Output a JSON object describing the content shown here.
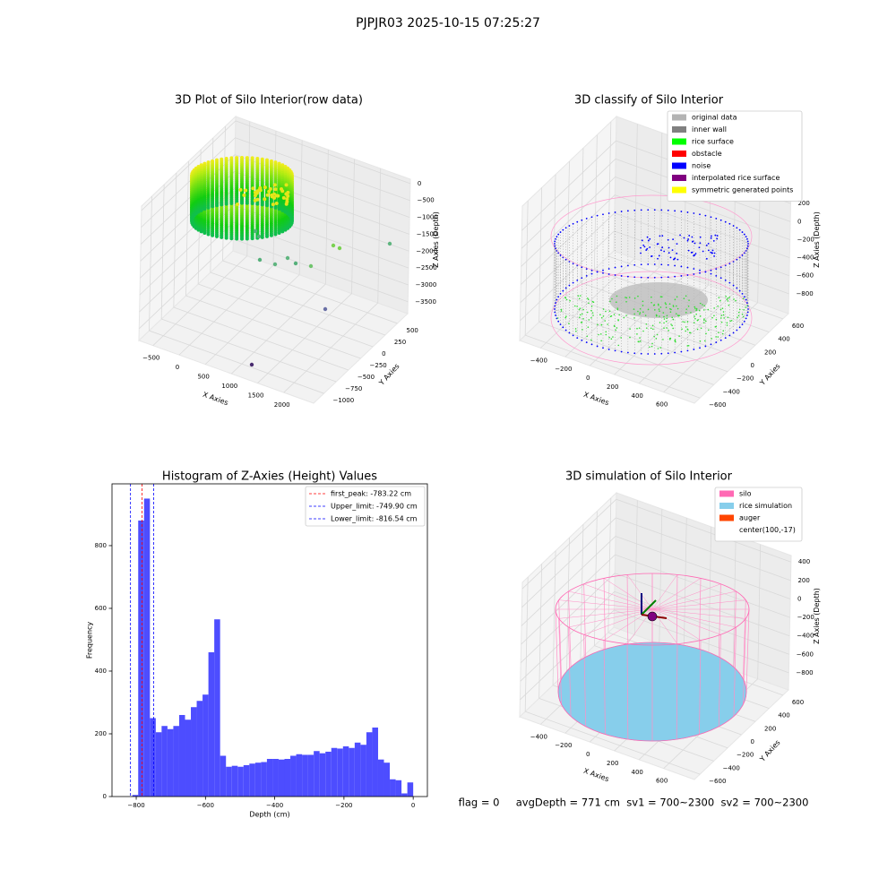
{
  "title": "PJPJR03 2025-10-15 07:25:27",
  "footer": "flag = 0     avgDepth = 771 cm  sv1 = 700~2300  sv2 = 700~2300",
  "chart_data": [
    {
      "type": "scatter3d",
      "title": "3D Plot of Silo Interior(row data)",
      "x_label": "X Axies",
      "y_label": "Y Axies",
      "z_label": "Z Axies (Depth)",
      "xlim": [
        -770,
        2570
      ],
      "ylim": [
        -1210,
        710
      ],
      "zlim": [
        -3850,
        130
      ],
      "xticks": [
        {
          "value": -500,
          "label": "−500"
        },
        0,
        500,
        1000,
        1500,
        2000
      ],
      "yticks": [
        {
          "value": -1000,
          "label": "−1000"
        },
        {
          "value": -750,
          "label": "−750"
        },
        {
          "value": -500,
          "label": "−500"
        },
        {
          "value": -250,
          "label": "−250"
        },
        0,
        250,
        500
      ],
      "zticks": [
        0,
        {
          "value": -500,
          "label": "−500"
        },
        {
          "value": -1000,
          "label": "−1000"
        },
        {
          "value": -1500,
          "label": "−1500"
        },
        {
          "value": -2000,
          "label": "−2000"
        },
        {
          "value": -2500,
          "label": "−2500"
        },
        {
          "value": -3000,
          "label": "−3000"
        },
        {
          "value": -3500,
          "label": "−3500"
        }
      ],
      "grid": true
    },
    {
      "type": "scatter3d",
      "title": "3D classify of Silo Interior",
      "x_label": "X Axies",
      "y_label": "Y Axies",
      "z_label": "Z Axies (Depth)",
      "xlim": [
        -570,
        850
      ],
      "ylim": [
        -680,
        680
      ],
      "zlim": [
        -1020,
        470
      ],
      "xticks": [
        {
          "value": -400,
          "label": "−400"
        },
        {
          "value": -200,
          "label": "−200"
        },
        0,
        200,
        400,
        600
      ],
      "yticks": [
        {
          "value": -600,
          "label": "−600"
        },
        {
          "value": -400,
          "label": "−400"
        },
        {
          "value": -200,
          "label": "−200"
        },
        0,
        200,
        400,
        600
      ],
      "zticks": [
        200,
        0,
        {
          "value": -200,
          "label": "−200"
        },
        {
          "value": -400,
          "label": "−400"
        },
        {
          "value": -600,
          "label": "−600"
        },
        {
          "value": -800,
          "label": "−800"
        }
      ],
      "grid": true,
      "legend_loc": "upper right",
      "legend": [
        {
          "name": "original data",
          "color": "#b3b3b3"
        },
        {
          "name": "inner wall",
          "color": "#808080"
        },
        {
          "name": "rice surface",
          "color": "#00ff00"
        },
        {
          "name": "obstacle",
          "color": "#ff0000"
        },
        {
          "name": "noise",
          "color": "#0000ff"
        },
        {
          "name": "interpolated rice surface",
          "color": "#800080"
        },
        {
          "name": "symmetric generated points",
          "color": "#ffff00"
        }
      ]
    },
    {
      "type": "histogram",
      "title": "Histogram of Z-Axies (Height) Values",
      "x_label": "Depth (cm)",
      "y_label": "Frequency",
      "color": "#4d4dff",
      "bins": [
        -811.2,
        -794.3,
        -777.4,
        -760.5,
        -743.6,
        -726.7,
        -709.8,
        -692.9,
        -676.0,
        -659.1,
        -642.2,
        -625.3,
        -608.4,
        -591.5,
        -574.6,
        -557.7,
        -540.8,
        -523.9,
        -507.0,
        -490.1,
        -473.2,
        -456.3,
        -439.4,
        -422.5,
        -405.6,
        -388.7,
        -371.8,
        -354.9,
        -338.0,
        -321.1,
        -304.2,
        -287.3,
        -270.4,
        -253.5,
        -236.6,
        -219.7,
        -202.8,
        -185.9,
        -169.0,
        -152.1,
        -135.2,
        -118.3,
        -101.4,
        -84.5,
        -67.6,
        -50.7,
        -33.8,
        -16.9,
        0.0
      ],
      "values": [
        5,
        880,
        950,
        250,
        205,
        225,
        215,
        225,
        260,
        245,
        285,
        305,
        325,
        460,
        565,
        130,
        95,
        98,
        95,
        100,
        105,
        108,
        110,
        120,
        120,
        118,
        120,
        130,
        135,
        133,
        133,
        145,
        138,
        143,
        155,
        153,
        160,
        155,
        172,
        165,
        205,
        220,
        118,
        108,
        55,
        52,
        10,
        45
      ],
      "xlim": [
        -870,
        41
      ],
      "ylim": [
        0,
        997
      ],
      "xticks": [
        {
          "value": -800,
          "label": "−800"
        },
        {
          "value": -600,
          "label": "−600"
        },
        {
          "value": -400,
          "label": "−400"
        },
        {
          "value": -200,
          "label": "−200"
        },
        0
      ],
      "yticks": [
        0,
        200,
        400,
        600,
        800
      ],
      "legend_loc": "upper right",
      "vlines": [
        {
          "name": "first_peak: -783.22 cm",
          "value": -783.22,
          "color": "#ff0000"
        },
        {
          "name": "Upper_limit: -749.90 cm",
          "value": -749.9,
          "color": "#0000ff"
        },
        {
          "name": "Lower_limit: -816.54 cm",
          "value": -816.54,
          "color": "#0000ff"
        }
      ]
    },
    {
      "type": "surface3d",
      "title": "3D simulation of Silo Interior",
      "x_label": "X Axies",
      "y_label": "Y Axies",
      "z_label": "Z Axies (Depth)",
      "xlim": [
        -570,
        850
      ],
      "ylim": [
        -680,
        680
      ],
      "zlim": [
        -985,
        470
      ],
      "xticks": [
        {
          "value": -400,
          "label": "−400"
        },
        {
          "value": -200,
          "label": "−200"
        },
        0,
        200,
        400,
        600
      ],
      "yticks": [
        {
          "value": -600,
          "label": "−600"
        },
        {
          "value": -400,
          "label": "−400"
        },
        {
          "value": -200,
          "label": "−200"
        },
        0,
        200,
        400,
        600
      ],
      "zticks": [
        400,
        200,
        0,
        {
          "value": -200,
          "label": "−200"
        },
        {
          "value": -400,
          "label": "−400"
        },
        {
          "value": -600,
          "label": "−600"
        },
        {
          "value": -800,
          "label": "−800"
        }
      ],
      "grid": true,
      "legend_loc": "upper right",
      "legend": [
        {
          "name": "silo",
          "color": "#ff69b4"
        },
        {
          "name": "rice simulation",
          "color": "#87ceeb"
        },
        {
          "name": "auger",
          "color": "#ff4500"
        },
        {
          "name": "center(100,-17)",
          "color": "#ffffff"
        }
      ]
    }
  ]
}
